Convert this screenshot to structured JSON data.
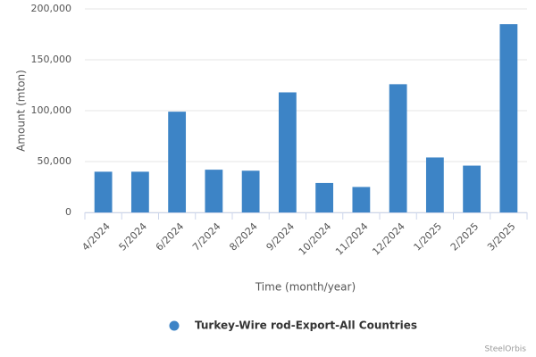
{
  "chart_data": {
    "type": "bar",
    "categories": [
      "4/2024",
      "5/2024",
      "6/2024",
      "7/2024",
      "8/2024",
      "9/2024",
      "10/2024",
      "11/2024",
      "12/2024",
      "1/2025",
      "2/2025",
      "3/2025"
    ],
    "series": [
      {
        "name": "Turkey-Wire rod-Export-All Countries",
        "color": "#3d84c6",
        "values": [
          40000,
          40000,
          99000,
          42000,
          41000,
          118000,
          29000,
          25000,
          126000,
          54000,
          46000,
          185000
        ]
      }
    ],
    "ylim": [
      0,
      200000
    ],
    "yticks": [
      0,
      {
        "value": 50000,
        "label": "50,000"
      },
      {
        "value": 100000,
        "label": "100,000"
      },
      {
        "value": 150000,
        "label": "150,000"
      },
      {
        "value": 200000,
        "label": "200,000"
      }
    ],
    "y_label": "Amount (mton)",
    "x_label": "Time (month/year)",
    "grid": true,
    "credits": "SteelOrbis"
  }
}
